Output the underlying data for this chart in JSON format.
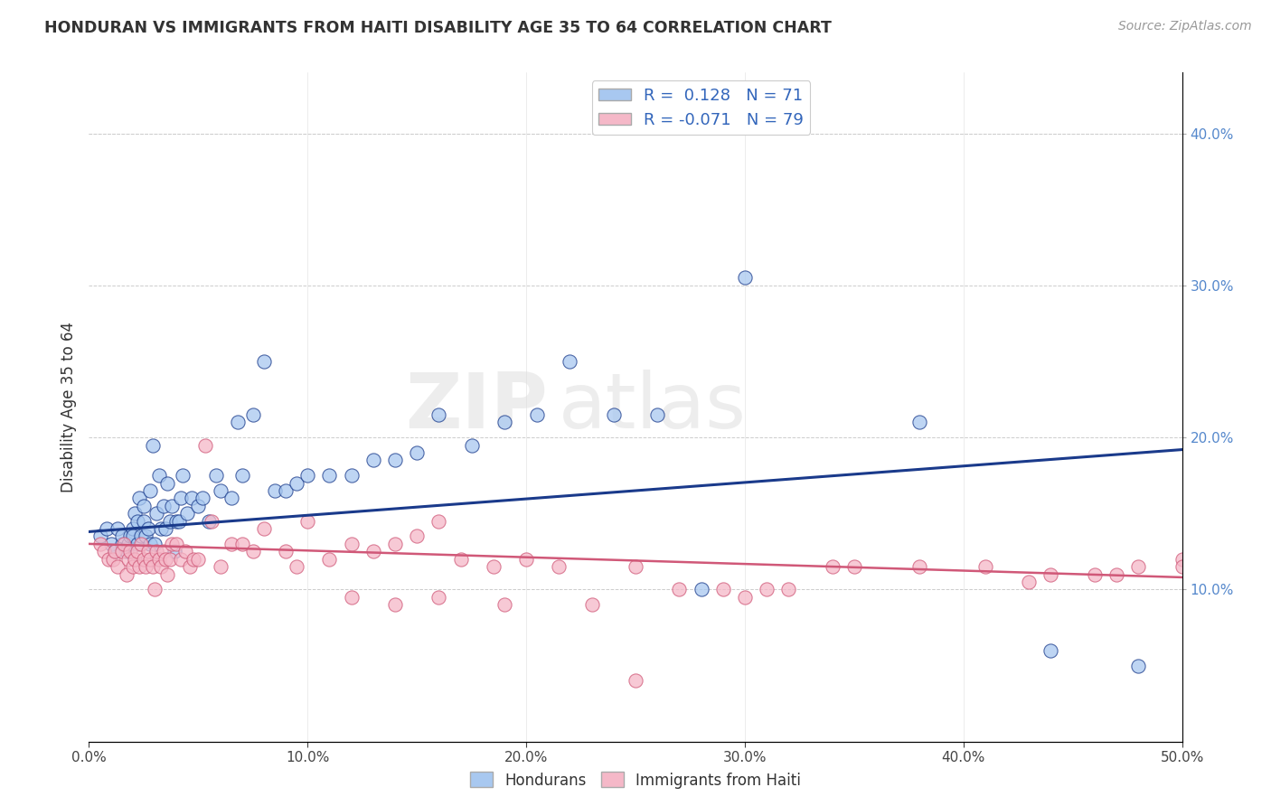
{
  "title": "HONDURAN VS IMMIGRANTS FROM HAITI DISABILITY AGE 35 TO 64 CORRELATION CHART",
  "source": "Source: ZipAtlas.com",
  "ylabel": "Disability Age 35 to 64",
  "xlim": [
    0.0,
    0.5
  ],
  "ylim": [
    0.0,
    0.44
  ],
  "xticks": [
    0.0,
    0.1,
    0.2,
    0.3,
    0.4,
    0.5
  ],
  "yticks_right": [
    0.1,
    0.2,
    0.3,
    0.4
  ],
  "color_blue": "#A8C8F0",
  "color_pink": "#F5B8C8",
  "line_color_blue": "#1A3A8B",
  "line_color_pink": "#D05878",
  "watermark_1": "ZIP",
  "watermark_2": "atlas",
  "blue_trend_x": [
    0.0,
    0.5
  ],
  "blue_trend_y": [
    0.138,
    0.192
  ],
  "pink_trend_x": [
    0.0,
    0.5
  ],
  "pink_trend_y": [
    0.13,
    0.108
  ],
  "blue_x": [
    0.005,
    0.008,
    0.01,
    0.012,
    0.013,
    0.015,
    0.015,
    0.017,
    0.018,
    0.019,
    0.02,
    0.02,
    0.021,
    0.022,
    0.022,
    0.023,
    0.024,
    0.025,
    0.025,
    0.026,
    0.027,
    0.028,
    0.028,
    0.029,
    0.03,
    0.031,
    0.032,
    0.033,
    0.034,
    0.035,
    0.036,
    0.037,
    0.038,
    0.039,
    0.04,
    0.041,
    0.042,
    0.043,
    0.045,
    0.047,
    0.05,
    0.052,
    0.055,
    0.058,
    0.06,
    0.065,
    0.068,
    0.07,
    0.075,
    0.08,
    0.085,
    0.09,
    0.095,
    0.1,
    0.11,
    0.12,
    0.13,
    0.14,
    0.15,
    0.16,
    0.175,
    0.19,
    0.205,
    0.22,
    0.24,
    0.26,
    0.28,
    0.3,
    0.38,
    0.44,
    0.48
  ],
  "blue_y": [
    0.135,
    0.14,
    0.13,
    0.125,
    0.14,
    0.13,
    0.135,
    0.125,
    0.13,
    0.135,
    0.14,
    0.135,
    0.15,
    0.13,
    0.145,
    0.16,
    0.135,
    0.145,
    0.155,
    0.135,
    0.14,
    0.13,
    0.165,
    0.195,
    0.13,
    0.15,
    0.175,
    0.14,
    0.155,
    0.14,
    0.17,
    0.145,
    0.155,
    0.125,
    0.145,
    0.145,
    0.16,
    0.175,
    0.15,
    0.16,
    0.155,
    0.16,
    0.145,
    0.175,
    0.165,
    0.16,
    0.21,
    0.175,
    0.215,
    0.25,
    0.165,
    0.165,
    0.17,
    0.175,
    0.175,
    0.175,
    0.185,
    0.185,
    0.19,
    0.215,
    0.195,
    0.21,
    0.215,
    0.25,
    0.215,
    0.215,
    0.1,
    0.305,
    0.21,
    0.06,
    0.05
  ],
  "pink_x": [
    0.005,
    0.007,
    0.009,
    0.011,
    0.012,
    0.013,
    0.015,
    0.016,
    0.017,
    0.018,
    0.019,
    0.02,
    0.021,
    0.022,
    0.023,
    0.024,
    0.025,
    0.026,
    0.027,
    0.028,
    0.029,
    0.03,
    0.031,
    0.032,
    0.033,
    0.034,
    0.035,
    0.036,
    0.037,
    0.038,
    0.04,
    0.042,
    0.044,
    0.046,
    0.048,
    0.05,
    0.053,
    0.056,
    0.06,
    0.065,
    0.07,
    0.075,
    0.08,
    0.09,
    0.095,
    0.1,
    0.11,
    0.12,
    0.13,
    0.14,
    0.15,
    0.16,
    0.17,
    0.185,
    0.2,
    0.215,
    0.23,
    0.25,
    0.27,
    0.3,
    0.32,
    0.35,
    0.38,
    0.41,
    0.44,
    0.46,
    0.48,
    0.5,
    0.12,
    0.14,
    0.16,
    0.19,
    0.25,
    0.29,
    0.31,
    0.34,
    0.43,
    0.47,
    0.5
  ],
  "pink_y": [
    0.13,
    0.125,
    0.12,
    0.12,
    0.125,
    0.115,
    0.125,
    0.13,
    0.11,
    0.12,
    0.125,
    0.115,
    0.12,
    0.125,
    0.115,
    0.13,
    0.12,
    0.115,
    0.125,
    0.12,
    0.115,
    0.1,
    0.125,
    0.12,
    0.115,
    0.125,
    0.12,
    0.11,
    0.12,
    0.13,
    0.13,
    0.12,
    0.125,
    0.115,
    0.12,
    0.12,
    0.195,
    0.145,
    0.115,
    0.13,
    0.13,
    0.125,
    0.14,
    0.125,
    0.115,
    0.145,
    0.12,
    0.13,
    0.125,
    0.13,
    0.135,
    0.145,
    0.12,
    0.115,
    0.12,
    0.115,
    0.09,
    0.115,
    0.1,
    0.095,
    0.1,
    0.115,
    0.115,
    0.115,
    0.11,
    0.11,
    0.115,
    0.12,
    0.095,
    0.09,
    0.095,
    0.09,
    0.04,
    0.1,
    0.1,
    0.115,
    0.105,
    0.11,
    0.115
  ]
}
